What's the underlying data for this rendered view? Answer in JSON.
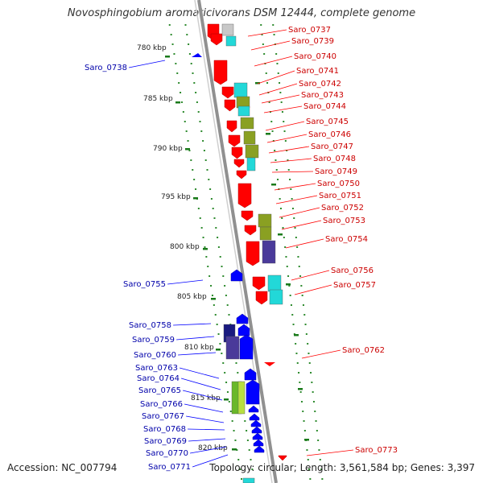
{
  "title": "Novosphingobium aromaticivorans DSM 12444, complete genome",
  "footer": {
    "accession_label": "Accession:",
    "accession": "NC_007794",
    "topology_label": "Topology:",
    "topology": "circular",
    "length_label": "Length:",
    "length": "3,561,584 bp",
    "genes_label": "Genes:",
    "genes": "3,397"
  },
  "colors": {
    "forward_gene": "#ff0000",
    "reverse_gene": "#0000ff",
    "backbone": "#909090",
    "tick": "#1a7a1a",
    "forward_label": "#cc0000",
    "reverse_label": "#0000aa"
  },
  "ticks": [
    "780 kbp",
    "785 kbp",
    "790 kbp",
    "795 kbp",
    "800 kbp",
    "805 kbp",
    "810 kbp",
    "815 kbp",
    "820 kbp"
  ],
  "forward_genes": [
    "Saro_0737",
    "Saro_0739",
    "Saro_0740",
    "Saro_0741",
    "Saro_0742",
    "Saro_0743",
    "Saro_0744",
    "Saro_0745",
    "Saro_0746",
    "Saro_0747",
    "Saro_0748",
    "Saro_0749",
    "Saro_0750",
    "Saro_0751",
    "Saro_0752",
    "Saro_0753",
    "Saro_0754",
    "Saro_0756",
    "Saro_0757",
    "Saro_0762",
    "Saro_0773"
  ],
  "reverse_genes": [
    "Saro_0738",
    "Saro_0755",
    "Saro_0758",
    "Saro_0759",
    "Saro_0760",
    "Saro_0763",
    "Saro_0764",
    "Saro_0765",
    "Saro_0766",
    "Saro_0767",
    "Saro_0768",
    "Saro_0769",
    "Saro_0770",
    "Saro_0771"
  ]
}
